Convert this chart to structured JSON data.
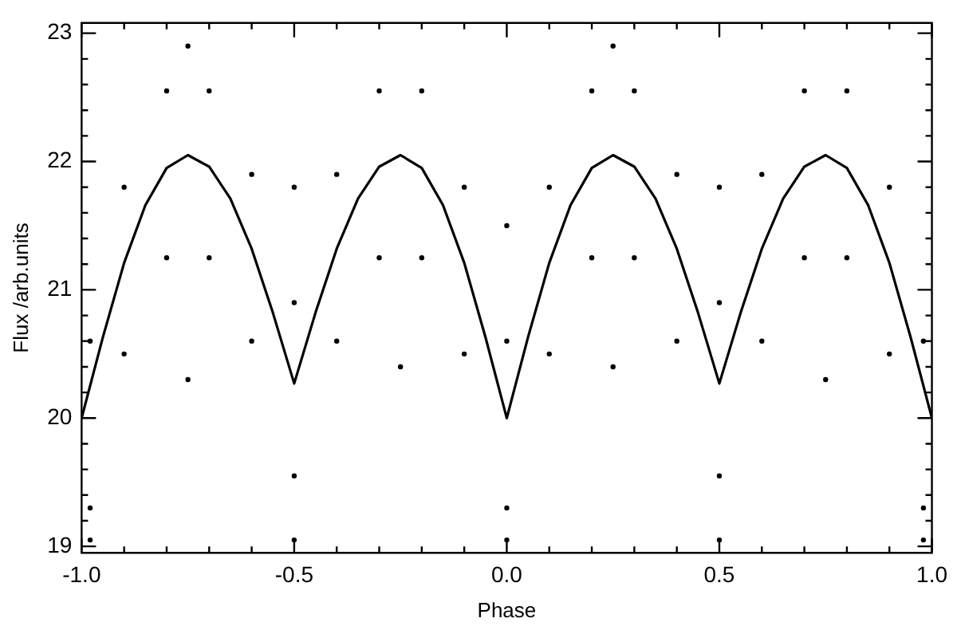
{
  "chart_data": {
    "type": "scatter",
    "xlabel": "Phase",
    "ylabel": "Flux /arb.units",
    "xlim": [
      -1,
      1
    ],
    "ylim": [
      18.95,
      23.08
    ],
    "xticks": [
      {
        "value": -1,
        "label": "-1.0"
      },
      {
        "value": -0.5,
        "label": "-0.5"
      },
      {
        "value": 0,
        "label": "0.0"
      },
      {
        "value": 0.5,
        "label": "0.5"
      },
      {
        "value": 1,
        "label": "1.0"
      }
    ],
    "yticks": [
      19,
      20,
      21,
      22,
      23
    ],
    "grid": false,
    "legend": false,
    "series": [
      {
        "type": "scatter",
        "marker": "circle",
        "color": "#000000",
        "x": [
          -0.98,
          -0.9,
          -0.8,
          -0.7,
          -0.6,
          -0.5,
          -0.4,
          -0.3,
          -0.2,
          -0.1,
          0,
          0.1,
          0.2,
          0.3,
          0.4,
          0.5,
          0.6,
          0.7,
          0.8,
          0.9,
          0.98,
          -0.98,
          -0.9,
          -0.8,
          -0.7,
          -0.6,
          -0.5,
          -0.4,
          -0.3,
          -0.2,
          -0.1,
          0,
          0.1,
          0.2,
          0.3,
          0.4,
          0.5,
          0.6,
          0.7,
          0.8,
          0.9,
          0.98,
          -0.98,
          -0.5,
          0,
          0.5,
          0.98,
          -0.75,
          -0.25,
          0.25,
          0.75,
          -0.5,
          0,
          0.5,
          -0.75,
          0.25
        ],
        "values": [
          20.6,
          21.8,
          22.55,
          22.55,
          21.9,
          20.9,
          21.9,
          22.55,
          22.55,
          21.8,
          20.6,
          21.8,
          22.55,
          22.55,
          21.9,
          20.9,
          21.9,
          22.55,
          22.55,
          21.8,
          20.6,
          19.3,
          20.5,
          21.25,
          21.25,
          20.6,
          19.55,
          20.6,
          21.25,
          21.25,
          20.5,
          19.3,
          20.5,
          21.25,
          21.25,
          20.6,
          19.55,
          20.6,
          21.25,
          21.25,
          20.5,
          19.3,
          19.05,
          19.05,
          19.05,
          19.05,
          19.05,
          20.3,
          20.4,
          20.4,
          20.3,
          21.8,
          21.5,
          21.8,
          22.9,
          22.9
        ]
      },
      {
        "type": "line",
        "marker": "none",
        "color": "#000000",
        "x": [
          -1,
          -0.95,
          -0.9,
          -0.85,
          -0.8,
          -0.75,
          -0.7,
          -0.65,
          -0.6,
          -0.55,
          -0.5,
          -0.45,
          -0.4,
          -0.35,
          -0.3,
          -0.25,
          -0.2,
          -0.15,
          -0.1,
          -0.05,
          0,
          0.05,
          0.1,
          0.15,
          0.2,
          0.25,
          0.3,
          0.35,
          0.4,
          0.45,
          0.5,
          0.55,
          0.6,
          0.65,
          0.7,
          0.75,
          0.8,
          0.85,
          0.9,
          0.95,
          1
        ],
        "values": [
          20,
          20.63,
          21.21,
          21.66,
          21.95,
          22.05,
          21.96,
          21.71,
          21.32,
          20.82,
          20.27,
          20.82,
          21.32,
          21.71,
          21.96,
          22.05,
          21.95,
          21.66,
          21.21,
          20.63,
          20,
          20.63,
          21.21,
          21.66,
          21.95,
          22.05,
          21.96,
          21.71,
          21.32,
          20.82,
          20.27,
          20.82,
          21.32,
          21.71,
          21.96,
          22.05,
          21.95,
          21.66,
          21.21,
          20.63,
          20
        ]
      }
    ]
  }
}
